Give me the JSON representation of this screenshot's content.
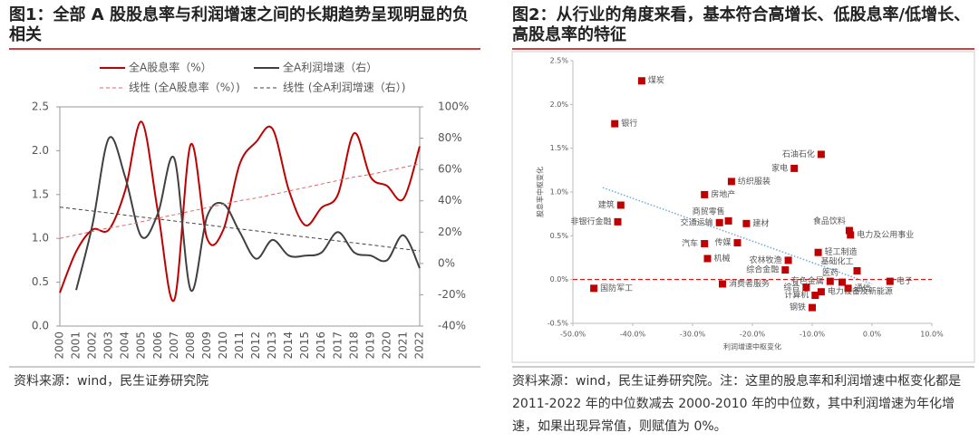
{
  "chart_data": [
    {
      "type": "line",
      "title": "图1：全部 A 股股息率与利润增速之间的长期趋势呈现明显的负相关",
      "categories": [
        "2000",
        "2001",
        "2002",
        "2003",
        "2004",
        "2005",
        "2006",
        "2007",
        "2008",
        "2009",
        "2010",
        "2011",
        "2012",
        "2013",
        "2014",
        "2015",
        "2016",
        "2017",
        "2018",
        "2019",
        "2020",
        "2021",
        "2022"
      ],
      "series": [
        {
          "name": "全A股息率（%）",
          "color": "#c00000",
          "style": "solid",
          "values": [
            0.38,
            0.85,
            1.1,
            1.1,
            1.55,
            2.33,
            1.3,
            0.3,
            2.07,
            1.0,
            1.1,
            1.85,
            2.1,
            2.25,
            1.55,
            1.15,
            1.35,
            1.5,
            2.2,
            1.7,
            1.6,
            1.45,
            2.05
          ]
        },
        {
          "name": "全A利润增速（右）",
          "color": "#404040",
          "style": "solid",
          "axis": "y2",
          "values": [
            null,
            -17,
            25,
            80,
            55,
            17,
            32,
            67,
            -17,
            30,
            38,
            20,
            3,
            15,
            5,
            5,
            7,
            20,
            7,
            5,
            2,
            18,
            -3
          ]
        },
        {
          "name": "线性 (全A股息率（%）)",
          "color": "#e06666",
          "style": "dashed",
          "values": [
            1.0,
            1.04,
            1.08,
            1.12,
            1.15,
            1.19,
            1.23,
            1.27,
            1.31,
            1.35,
            1.39,
            1.43,
            1.46,
            1.5,
            1.54,
            1.58,
            1.62,
            1.66,
            1.7,
            1.73,
            1.77,
            1.81,
            1.85
          ]
        },
        {
          "name": "线性 (全A利润增速（右）)",
          "color": "#404040",
          "style": "dashed",
          "axis": "y2",
          "values": [
            36,
            34.7,
            33.5,
            32.2,
            30.9,
            29.6,
            28.4,
            27.1,
            25.8,
            24.6,
            23.3,
            22,
            20.8,
            19.5,
            18.2,
            16.9,
            15.7,
            14.4,
            13.1,
            11.9,
            10.6,
            9.3,
            8
          ]
        }
      ],
      "ylim": [
        0,
        2.5
      ],
      "yticks": [
        {
          "value": 0,
          "label": "0.0"
        },
        0.5,
        {
          "value": 1,
          "label": "1.0"
        },
        1.5,
        {
          "value": 2,
          "label": "2.0"
        },
        2.5
      ],
      "y2lim": [
        -40,
        100
      ],
      "y2ticks": [
        {
          "value": -40,
          "label": "-40%"
        },
        {
          "value": -20,
          "label": "-20%"
        },
        {
          "value": 0,
          "label": "0%"
        },
        {
          "value": 20,
          "label": "20%"
        },
        {
          "value": 40,
          "label": "40%"
        },
        {
          "value": 60,
          "label": "60%"
        },
        {
          "value": 80,
          "label": "80%"
        },
        {
          "value": 100,
          "label": "100%"
        }
      ],
      "source": "资料来源：wind，民生证券研究院"
    },
    {
      "type": "scatter",
      "title": "图2：从行业的角度来看，基本符合高增长、低股息率/低增长、高股息率的特征",
      "color": "#c00000",
      "xlabel": "利润增速中枢变化",
      "ylabel": "股息率中枢变化",
      "labels": [
        "煤炭",
        "银行",
        "石油石化",
        "家电",
        "纺织服装",
        "房地产",
        "建筑",
        "商贸零售",
        "交通运输",
        "建材",
        "非银行金融",
        "食品饮料",
        "电力及公用事业",
        "汽车",
        "传媒",
        "轻工制造",
        "机械",
        "农林牧渔",
        "基础化工",
        "综合金融",
        "国防军工",
        "消费者服务",
        "有色金属",
        "电子",
        "综合",
        "医药",
        "通信",
        "计算机",
        "电力设备及新能源",
        "钢铁"
      ],
      "x": [
        -38.5,
        -43,
        -8.5,
        -13,
        -23.5,
        -28,
        -42,
        -24,
        -25.5,
        -21,
        -42.5,
        -3.8,
        -3.6,
        -28,
        -22.5,
        -9,
        -27.5,
        -14,
        -2.5,
        -14.5,
        -46.5,
        -25,
        -7,
        3,
        -11,
        -5,
        -4,
        -9.5,
        -8.5,
        -10
      ],
      "values": [
        2.27,
        1.78,
        1.43,
        1.27,
        1.12,
        0.97,
        0.85,
        0.67,
        0.65,
        0.64,
        0.66,
        0.56,
        0.51,
        0.41,
        0.42,
        0.31,
        0.24,
        0.22,
        0.1,
        0.11,
        -0.1,
        -0.05,
        -0.02,
        -0.02,
        -0.09,
        -0.03,
        -0.1,
        -0.18,
        -0.14,
        -0.32
      ],
      "xlim": [
        -50,
        10
      ],
      "xticks": [
        {
          "value": -50,
          "label": "-50.0%"
        },
        {
          "value": -40,
          "label": "-40.0%"
        },
        {
          "value": -30,
          "label": "-30.0%"
        },
        {
          "value": -20,
          "label": "-20.0%"
        },
        {
          "value": -10,
          "label": "-10.0%"
        },
        {
          "value": 0,
          "label": "0.0%"
        },
        {
          "value": 10,
          "label": "10.0%"
        }
      ],
      "ylim": [
        -0.5,
        2.5
      ],
      "yticks": [
        {
          "value": -0.5,
          "label": "-0.5%"
        },
        {
          "value": 0,
          "label": "0.0%"
        },
        {
          "value": 0.5,
          "label": "0.5%"
        },
        {
          "value": 1,
          "label": "1.0%"
        },
        {
          "value": 1.5,
          "label": "1.5%"
        },
        {
          "value": 2,
          "label": "2.0%"
        },
        {
          "value": 2.5,
          "label": "2.5%"
        }
      ],
      "source": "资料来源：wind，民生证券研究院。注：这里的股息率和利润增速中枢变化都是 2011-2022 年的中位数减去 2000-2010 年的中位数，其中利润增速为年化增速，如果出现异常值，则赋值为 0%。"
    }
  ]
}
